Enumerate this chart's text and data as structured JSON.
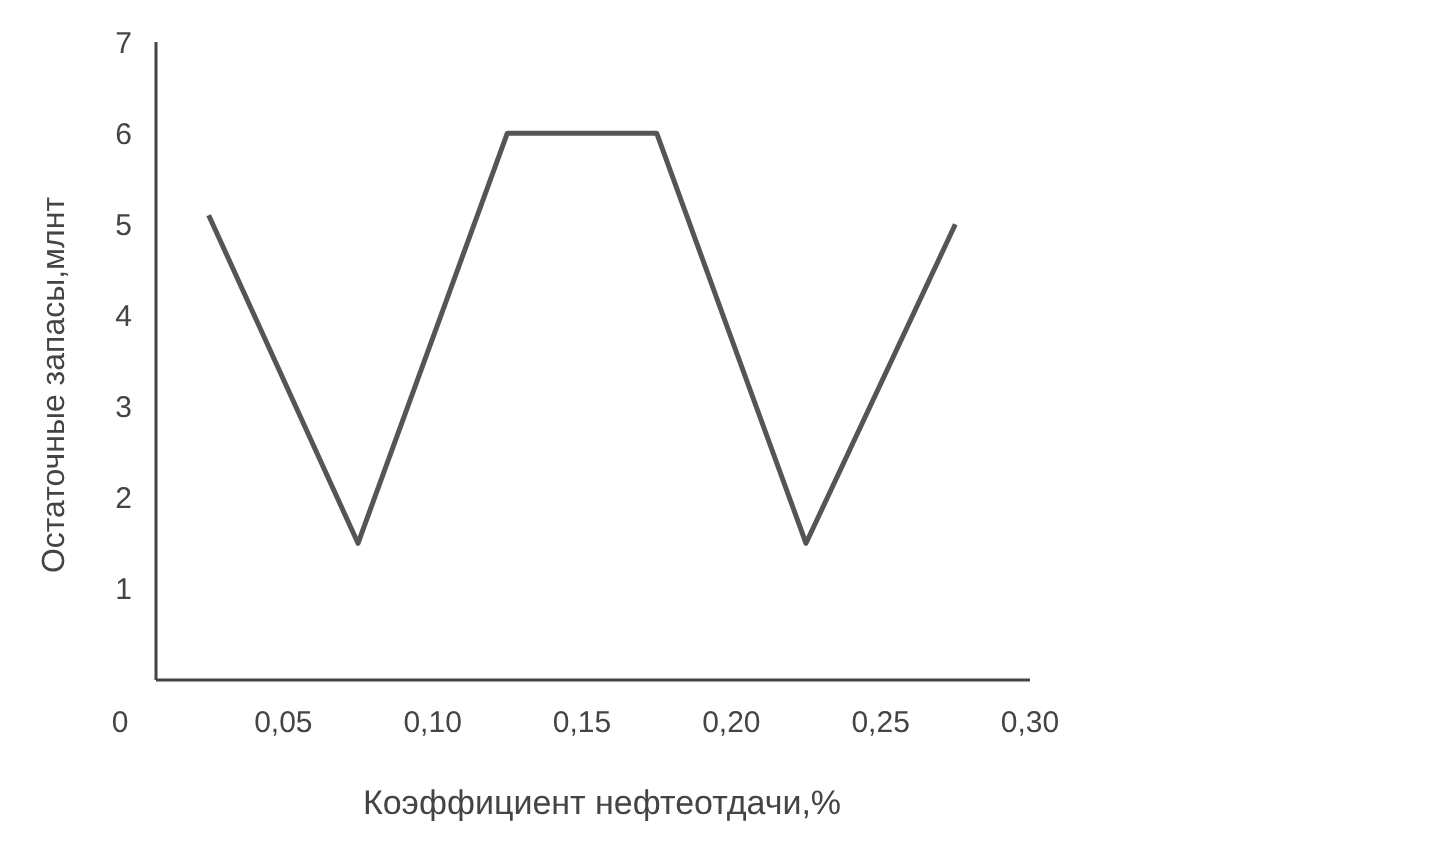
{
  "chart_data": {
    "type": "line",
    "xlabel": "Коэффициент нефтеотдачи,%",
    "ylabel": "Остаточные запасы,млнт",
    "x": [
      0.025,
      0.075,
      0.125,
      0.175,
      0.225,
      0.275
    ],
    "values": [
      5.1,
      1.5,
      6,
      6,
      1.5,
      5
    ],
    "color": "#555555",
    "xlim": [
      0,
      0.3
    ],
    "ylim": [
      0,
      7
    ],
    "xticks": [
      0,
      {
        "value": 0.05,
        "label": "0,05"
      },
      {
        "value": 0.1,
        "label": "0,10"
      },
      {
        "value": 0.15,
        "label": "0,15"
      },
      {
        "value": 0.2,
        "label": "0,20"
      },
      {
        "value": 0.25,
        "label": "0,25"
      },
      {
        "value": 0.3,
        "label": "0,30"
      }
    ],
    "yticks": [
      1,
      2,
      3,
      4,
      5,
      6,
      7
    ],
    "grid": false,
    "marker": "none",
    "line_style": "solid"
  }
}
